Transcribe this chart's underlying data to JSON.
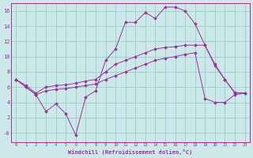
{
  "background_color": "#cce8e8",
  "grid_color": "#99cccc",
  "line_color": "#993399",
  "marker_color": "#993399",
  "xlim": [
    -0.5,
    23.5
  ],
  "ylim": [
    -1.2,
    17
  ],
  "yticks": [
    0,
    2,
    4,
    6,
    8,
    10,
    12,
    14,
    16
  ],
  "ytick_labels": [
    "-0",
    "2",
    "4",
    "6",
    "8",
    "10",
    "12",
    "14",
    "16"
  ],
  "xticks": [
    0,
    1,
    2,
    3,
    4,
    5,
    6,
    7,
    8,
    9,
    10,
    11,
    12,
    13,
    14,
    15,
    16,
    17,
    18,
    19,
    20,
    21,
    22,
    23
  ],
  "xlabel": "Windchill (Refroidissement éolien,°C)",
  "series1_x": [
    0,
    1,
    2,
    3,
    4,
    5,
    6,
    7,
    8,
    9,
    10,
    11,
    12,
    13,
    14,
    15,
    16,
    17,
    18,
    19,
    20,
    21,
    22,
    23
  ],
  "series1_y": [
    7.0,
    6.0,
    5.0,
    2.8,
    3.8,
    2.5,
    -0.3,
    4.7,
    5.5,
    9.5,
    11.0,
    14.5,
    14.5,
    15.8,
    15.0,
    16.5,
    16.5,
    16.0,
    14.3,
    11.5,
    8.8,
    7.0,
    5.2,
    5.2
  ],
  "series2_x": [
    0,
    1,
    2,
    3,
    4,
    5,
    6,
    7,
    8,
    9,
    10,
    11,
    12,
    13,
    14,
    15,
    16,
    17,
    18,
    19,
    20,
    21,
    22,
    23
  ],
  "series2_y": [
    7.0,
    6.2,
    5.2,
    6.0,
    6.2,
    6.3,
    6.5,
    6.8,
    7.0,
    8.0,
    9.0,
    9.5,
    10.0,
    10.5,
    11.0,
    11.2,
    11.3,
    11.5,
    11.5,
    11.5,
    9.0,
    7.0,
    5.3,
    5.2
  ],
  "series3_x": [
    0,
    1,
    2,
    3,
    4,
    5,
    6,
    7,
    8,
    9,
    10,
    11,
    12,
    13,
    14,
    15,
    16,
    17,
    18,
    19,
    20,
    21,
    22,
    23
  ],
  "series3_y": [
    7.0,
    6.0,
    5.0,
    5.5,
    5.7,
    5.8,
    6.0,
    6.2,
    6.4,
    7.0,
    7.5,
    8.0,
    8.5,
    9.0,
    9.5,
    9.8,
    10.0,
    10.3,
    10.5,
    4.5,
    4.0,
    4.0,
    5.0,
    5.2
  ]
}
